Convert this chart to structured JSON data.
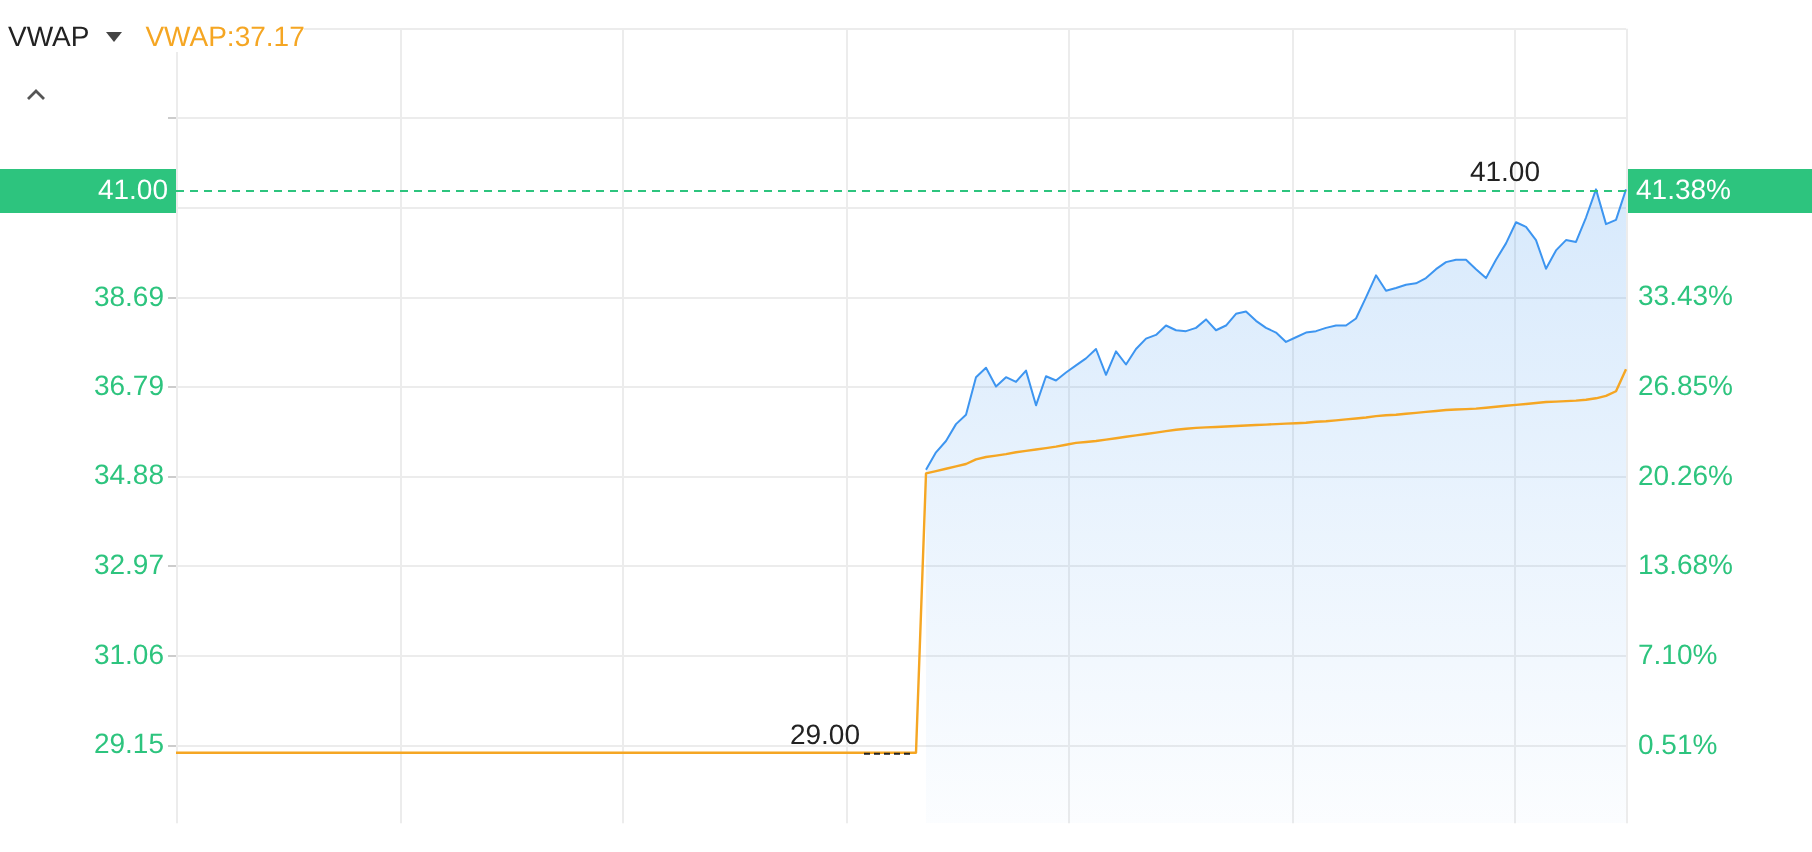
{
  "chart_data": {
    "type": "area",
    "legend_title": "VWAP",
    "legend": "top left",
    "grid": true,
    "categories": [
      null,
      null,
      null,
      null,
      null,
      null,
      null,
      null,
      null,
      null,
      null,
      null,
      null,
      null,
      null,
      null,
      null,
      null,
      null,
      null,
      null,
      null,
      null,
      null,
      null,
      null,
      null,
      null,
      null,
      null,
      null,
      null,
      null,
      null,
      null,
      null,
      null,
      null,
      null,
      null,
      null,
      null,
      null,
      null,
      null,
      null,
      null,
      null,
      null,
      null,
      null,
      null,
      null,
      null,
      null,
      null,
      null,
      null,
      null,
      null,
      null,
      null,
      null,
      null,
      null,
      null,
      null,
      null,
      null,
      null,
      null,
      null,
      null,
      null,
      null,
      null,
      null,
      null,
      null,
      null,
      null,
      null,
      null,
      null,
      null,
      null,
      null,
      null,
      null,
      null,
      null,
      null,
      null,
      null,
      null,
      null,
      null,
      null,
      null,
      null,
      null,
      null,
      null,
      null,
      null,
      null,
      null,
      null,
      null,
      null,
      null,
      null,
      null,
      null,
      null,
      null,
      null,
      null,
      null,
      null,
      null,
      null,
      null,
      null,
      null,
      null,
      null,
      null,
      null,
      null,
      null,
      null,
      null,
      null,
      null,
      null,
      null,
      null,
      null,
      null,
      null,
      null,
      null,
      null,
      null,
      null
    ],
    "series": [
      {
        "type": "area",
        "color": "#3d95f0",
        "values": [
          null,
          null,
          null,
          null,
          null,
          null,
          null,
          null,
          null,
          null,
          null,
          null,
          null,
          null,
          null,
          null,
          null,
          null,
          null,
          null,
          null,
          null,
          null,
          null,
          null,
          null,
          null,
          null,
          null,
          null,
          null,
          null,
          null,
          null,
          null,
          null,
          null,
          null,
          null,
          null,
          null,
          null,
          null,
          null,
          null,
          null,
          null,
          null,
          null,
          null,
          null,
          null,
          null,
          null,
          null,
          null,
          null,
          null,
          null,
          null,
          null,
          null,
          null,
          null,
          null,
          null,
          null,
          null,
          null,
          null,
          null,
          null,
          null,
          null,
          null,
          35.03,
          35.4,
          35.64,
          36.0,
          36.2,
          37.0,
          37.2,
          36.8,
          37.0,
          36.9,
          37.14,
          36.4,
          37.02,
          36.93,
          37.1,
          37.25,
          37.4,
          37.6,
          37.05,
          37.55,
          37.27,
          37.6,
          37.82,
          37.9,
          38.1,
          38.0,
          37.98,
          38.05,
          38.23,
          38.0,
          38.1,
          38.35,
          38.4,
          38.2,
          38.05,
          37.95,
          37.75,
          37.85,
          37.95,
          37.98,
          38.05,
          38.1,
          38.1,
          38.25,
          38.7,
          39.17,
          38.84,
          38.9,
          38.97,
          39.0,
          39.11,
          39.3,
          39.45,
          39.5,
          39.5,
          39.3,
          39.11,
          39.5,
          39.85,
          40.3,
          40.2,
          39.92,
          39.31,
          39.7,
          39.92,
          39.88,
          40.4,
          41.0,
          40.26,
          40.35,
          41.0
        ]
      },
      {
        "type": "line",
        "name": "VWAP:37.17",
        "color": "#f5a623",
        "values": [
          29.0,
          29.0,
          29.0,
          29.0,
          29.0,
          29.0,
          29.0,
          29.0,
          29.0,
          29.0,
          29.0,
          29.0,
          29.0,
          29.0,
          29.0,
          29.0,
          29.0,
          29.0,
          29.0,
          29.0,
          29.0,
          29.0,
          29.0,
          29.0,
          29.0,
          29.0,
          29.0,
          29.0,
          29.0,
          29.0,
          29.0,
          29.0,
          29.0,
          29.0,
          29.0,
          29.0,
          29.0,
          29.0,
          29.0,
          29.0,
          29.0,
          29.0,
          29.0,
          29.0,
          29.0,
          29.0,
          29.0,
          29.0,
          29.0,
          29.0,
          29.0,
          29.0,
          29.0,
          29.0,
          29.0,
          29.0,
          29.0,
          29.0,
          29.0,
          29.0,
          29.0,
          29.0,
          29.0,
          29.0,
          29.0,
          29.0,
          29.0,
          29.0,
          29.0,
          29.0,
          29.0,
          29.0,
          29.0,
          29.0,
          29.0,
          34.95,
          35.0,
          35.05,
          35.1,
          35.15,
          35.25,
          35.3,
          35.33,
          35.36,
          35.4,
          35.43,
          35.46,
          35.49,
          35.52,
          35.56,
          35.6,
          35.62,
          35.64,
          35.67,
          35.7,
          35.73,
          35.76,
          35.79,
          35.82,
          35.85,
          35.88,
          35.9,
          35.92,
          35.93,
          35.94,
          35.95,
          35.96,
          35.97,
          35.98,
          35.99,
          36.0,
          36.01,
          36.02,
          36.03,
          36.05,
          36.06,
          36.08,
          36.1,
          36.12,
          36.14,
          36.17,
          36.19,
          36.2,
          36.22,
          36.24,
          36.26,
          36.28,
          36.3,
          36.31,
          36.32,
          36.33,
          36.35,
          36.37,
          36.39,
          36.41,
          36.43,
          36.45,
          36.47,
          36.48,
          36.49,
          36.5,
          36.52,
          36.55,
          36.6,
          36.7,
          37.17
        ]
      }
    ],
    "ylim": [
      27.5,
      44.42
    ],
    "yticks": [
      29.15,
      31.06,
      32.97,
      34.88,
      36.79,
      38.69,
      {
        "value": 40.6,
        "label": null
      },
      {
        "value": 42.51,
        "label": null
      },
      {
        "value": 44.42,
        "label": null
      }
    ],
    "y2lim": [
      -5.17,
      53.17
    ],
    "y2ticks": [
      {
        "value": 0.51,
        "label": "0.51%"
      },
      {
        "value": 7.1,
        "label": "7.10%"
      },
      {
        "value": 13.68,
        "label": "13.68%"
      },
      {
        "value": 20.26,
        "label": "20.26%"
      },
      {
        "value": 26.85,
        "label": "26.85%"
      },
      {
        "value": 33.43,
        "label": "33.43%"
      },
      {
        "value": 40.01,
        "label": null
      }
    ],
    "ref_lines": [
      {
        "axis": "y",
        "value": 41.0,
        "label": "41.00",
        "color": "#2dc47e",
        "line_style": "dashed"
      }
    ],
    "annotations": [
      "41.38%",
      {
        "text": "41.00",
        "y": 41.0
      },
      {
        "text": "29.00",
        "y": 29.0
      }
    ]
  }
}
